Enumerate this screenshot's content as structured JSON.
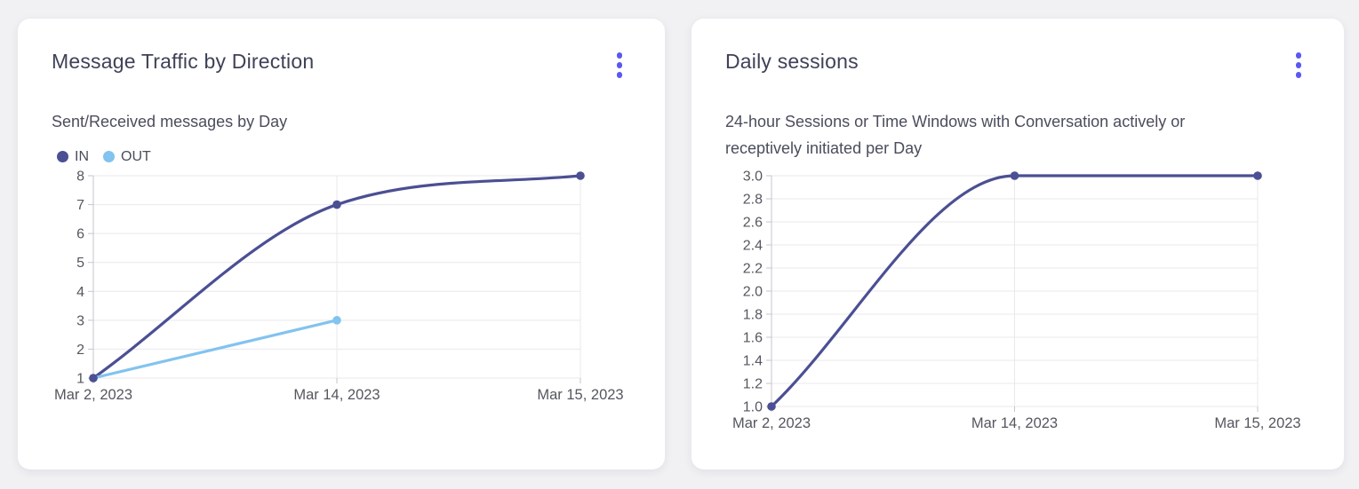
{
  "page": {
    "background_color": "#f1f1f4",
    "accent_color": "#5a58f2",
    "gridline_color": "#e9e9ed",
    "axis_color": "#c5c6cd",
    "axis_text_color": "#55575f"
  },
  "cards": [
    {
      "title": "Message Traffic by Direction",
      "subtitle": "Sent/Received messages by Day",
      "menu_icon": "kebab-menu"
    },
    {
      "title": "Daily sessions",
      "subtitle": "24-hour Sessions or Time Windows with Conversation actively or receptively initiated per Day",
      "menu_icon": "kebab-menu"
    }
  ],
  "chart_data": [
    {
      "type": "line",
      "title": "Message Traffic by Direction",
      "subtitle": "Sent/Received messages by Day",
      "categories": [
        "Mar 2, 2023",
        "Mar 14, 2023",
        "Mar 15, 2023"
      ],
      "series": [
        {
          "name": "IN",
          "color": "#4b4f93",
          "values": [
            1,
            7,
            8
          ]
        },
        {
          "name": "OUT",
          "color": "#82c3ef",
          "values": [
            1,
            3,
            null
          ]
        }
      ],
      "ylim": [
        1,
        8
      ],
      "y_tick_values": [
        1,
        2,
        3,
        4,
        5,
        6,
        7,
        8
      ],
      "y_tick_labels": [
        "1",
        "2",
        "3",
        "4",
        "5",
        "6",
        "7",
        "8"
      ],
      "xlabel": "",
      "ylabel": "",
      "grid": true,
      "curve": "monotone",
      "legend_position": "top-left"
    },
    {
      "type": "line",
      "title": "Daily sessions",
      "subtitle": "24-hour Sessions or Time Windows with Conversation actively or receptively initiated per Day",
      "categories": [
        "Mar 2, 2023",
        "Mar 14, 2023",
        "Mar 15, 2023"
      ],
      "series": [
        {
          "name": "Daily sessions",
          "color": "#4b4f93",
          "values": [
            1.0,
            3.0,
            3.0
          ]
        }
      ],
      "ylim": [
        1.0,
        3.0
      ],
      "y_tick_values": [
        1.0,
        1.2,
        1.4,
        1.6,
        1.8,
        2.0,
        2.2,
        2.4,
        2.6,
        2.8,
        3.0
      ],
      "y_tick_labels": [
        "1.0",
        "1.2",
        "1.4",
        "1.6",
        "1.8",
        "2.0",
        "2.2",
        "2.4",
        "2.6",
        "2.8",
        "3.0"
      ],
      "xlabel": "",
      "ylabel": "",
      "grid": true,
      "curve": "monotone",
      "legend_position": "none"
    }
  ]
}
